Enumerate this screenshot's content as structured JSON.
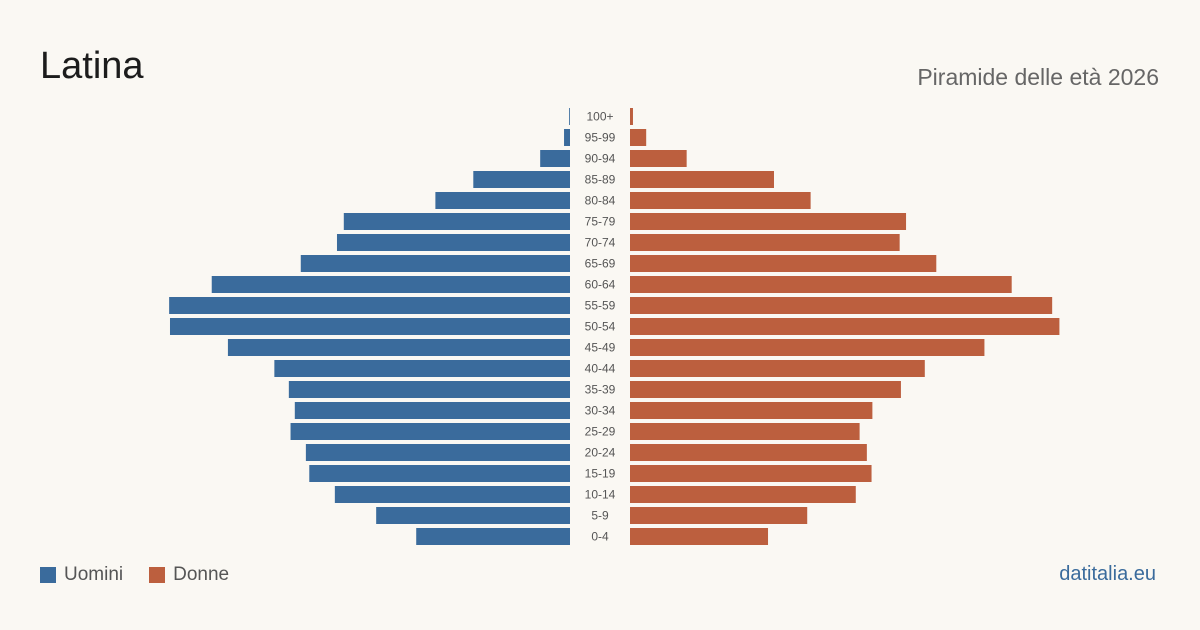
{
  "header": {
    "title": "Latina",
    "subtitle": "Piramide delle età 2026"
  },
  "legend": {
    "men_label": "Uomini",
    "women_label": "Donne"
  },
  "source": "datitalia.eu",
  "colors": {
    "men": "#3a6b9c",
    "women": "#bc5f3e",
    "background": "#faf8f3"
  },
  "chart_data": {
    "type": "bar",
    "orientation": "horizontal-pyramid",
    "categories": [
      "100+",
      "95-99",
      "90-94",
      "85-89",
      "80-84",
      "75-79",
      "70-74",
      "65-69",
      "60-64",
      "55-59",
      "50-54",
      "45-49",
      "40-44",
      "35-39",
      "30-34",
      "25-29",
      "20-24",
      "15-19",
      "10-14",
      "5-9",
      "0-4"
    ],
    "series": [
      {
        "name": "Uomini",
        "values": [
          0.2,
          1.4,
          7.0,
          22.7,
          31.6,
          53.1,
          54.7,
          63.2,
          84.1,
          94.1,
          93.9,
          80.3,
          69.4,
          66.0,
          64.6,
          65.6,
          62.0,
          61.2,
          55.2,
          45.5,
          36.1
        ]
      },
      {
        "name": "Donne",
        "values": [
          0.7,
          3.8,
          13.3,
          33.8,
          42.4,
          64.8,
          63.3,
          71.9,
          89.6,
          99.1,
          100.8,
          83.2,
          69.2,
          63.6,
          56.9,
          53.9,
          55.6,
          56.7,
          53.0,
          41.6,
          32.4
        ]
      }
    ],
    "xlabel": "",
    "ylabel": ""
  }
}
